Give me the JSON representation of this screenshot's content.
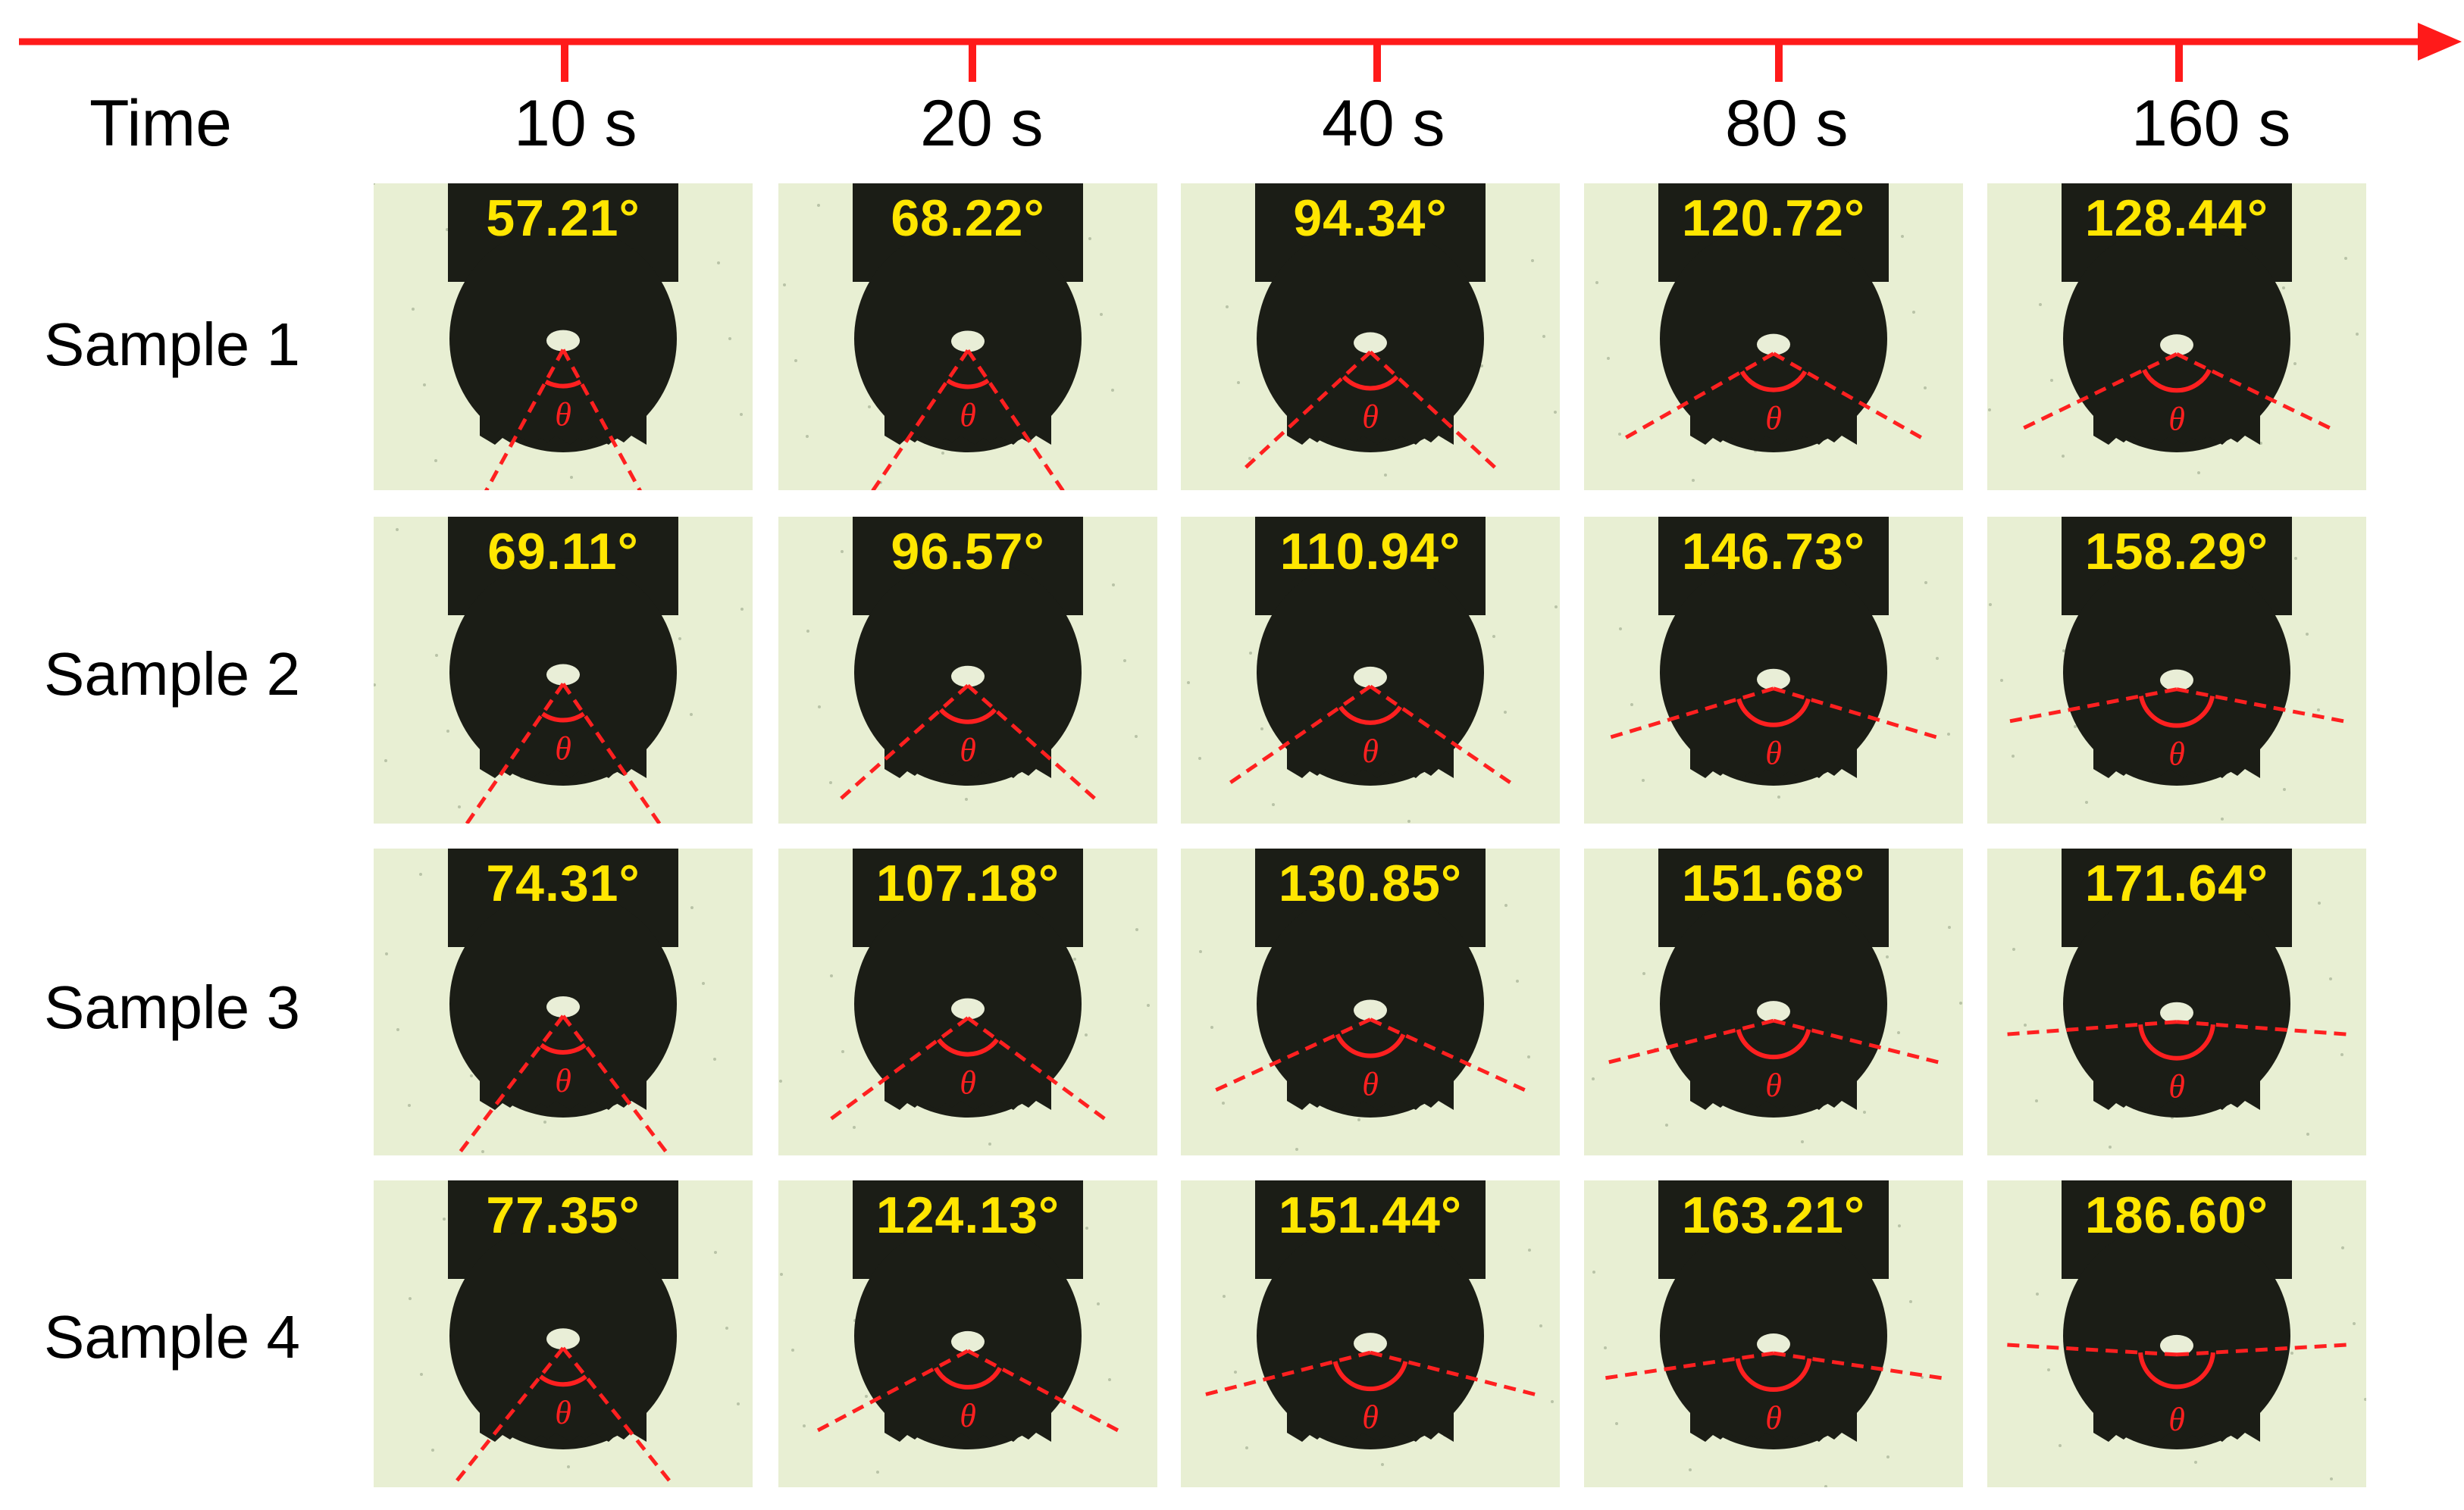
{
  "axis_label": "Time",
  "times": [
    "10 s",
    "20 s",
    "40 s",
    "80 s",
    "160 s"
  ],
  "theta_symbol": "θ",
  "colors": {
    "timeline": "#ff1a1a",
    "angle_text": "#ffe600",
    "guide_lines": "#ff2020",
    "background": "#e8efd3",
    "droplet": "#1b1d16"
  },
  "samples": [
    {
      "label": "Sample 1",
      "angles": [
        "57.21°",
        "68.22°",
        "94.34°",
        "120.72°",
        "128.44°"
      ]
    },
    {
      "label": "Sample 2",
      "angles": [
        "69.11°",
        "96.57°",
        "110.94°",
        "146.73°",
        "158.29°"
      ]
    },
    {
      "label": "Sample 3",
      "angles": [
        "74.31°",
        "107.18°",
        "130.85°",
        "151.68°",
        "171.64°"
      ]
    },
    {
      "label": "Sample 4",
      "angles": [
        "77.35°",
        "124.13°",
        "151.44°",
        "163.21°",
        "186.60°"
      ]
    }
  ]
}
